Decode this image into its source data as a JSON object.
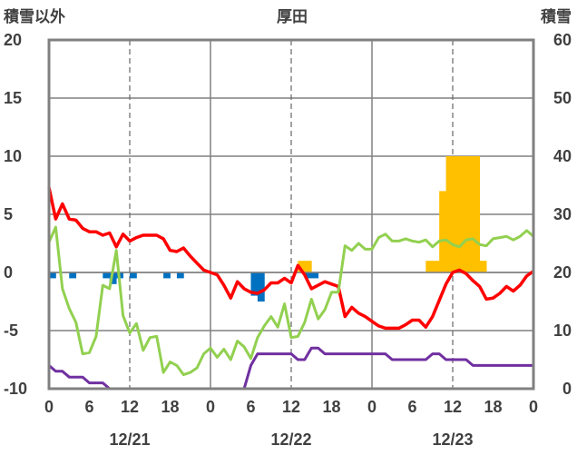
{
  "chart_data": {
    "type": "line+bar",
    "title": "厚田",
    "ylabel_left": "積雪以外",
    "ylabel_right": "積雪",
    "ylim_left": [
      -10,
      20
    ],
    "ylim_right": [
      0,
      60
    ],
    "yticks_left": [
      "20",
      "15",
      "10",
      "5",
      "0",
      "-5",
      "-10"
    ],
    "yticks_right": [
      "60",
      "50",
      "40",
      "30",
      "20",
      "10",
      "0"
    ],
    "xlim_hours": [
      0,
      72
    ],
    "xticks": [
      "0",
      "6",
      "12",
      "18",
      "0",
      "6",
      "12",
      "18",
      "0",
      "6",
      "12",
      "18",
      "0"
    ],
    "date_labels": [
      "12/21",
      "12/22",
      "12/23"
    ],
    "grid": true,
    "colors": {
      "temperature": "#ff0000",
      "green_series": "#92d050",
      "purple_series": "#7030a0",
      "precip_bar": "#0070c0",
      "snow_bar": "#ffc000",
      "frame": "#808080"
    },
    "series": [
      {
        "axis": "left",
        "color": "#ff0000",
        "x": [
          0,
          1,
          2,
          3,
          4,
          5,
          6,
          7,
          8,
          9,
          10,
          11,
          12,
          13,
          14,
          15,
          16,
          17,
          18,
          19,
          20,
          21,
          22,
          23,
          24,
          25,
          26,
          27,
          28,
          29,
          30,
          31,
          32,
          33,
          34,
          35,
          36,
          37,
          38,
          39,
          40,
          41,
          42,
          43,
          44,
          45,
          46,
          47,
          48,
          49,
          50,
          51,
          52,
          53,
          54,
          55,
          56,
          57,
          58,
          59,
          60,
          61,
          62,
          63,
          64,
          65,
          66,
          67,
          68,
          69,
          70,
          71,
          72
        ],
        "values": [
          7.3,
          4.6,
          5.9,
          4.6,
          4.5,
          3.8,
          3.5,
          3.5,
          3.2,
          3.4,
          2.2,
          3.3,
          2.7,
          3,
          3.2,
          3.2,
          3.2,
          2.9,
          1.9,
          1.8,
          2.1,
          1.4,
          0.8,
          0.2,
          0,
          -0.2,
          -1.1,
          -2.2,
          -0.8,
          -1.4,
          -1.7,
          -1.8,
          -1.5,
          -0.9,
          -0.9,
          -0.5,
          -0.9,
          0.6,
          -0.2,
          -1.4,
          -1.1,
          -0.8,
          -1,
          -1.2,
          -3.8,
          -3,
          -3.5,
          -3.8,
          -4.2,
          -4.6,
          -4.8,
          -4.8,
          -4.8,
          -4.5,
          -4.1,
          -4.1,
          -4.7,
          -3.8,
          -2.4,
          -1,
          0,
          0.2,
          -0.1,
          -0.7,
          -1.2,
          -2.3,
          -2.2,
          -1.8,
          -1.2,
          -1.6,
          -1.1,
          -0.3,
          0.1
        ]
      },
      {
        "axis": "left",
        "color": "#92d050",
        "x": [
          0,
          1,
          2,
          3,
          4,
          5,
          6,
          7,
          8,
          9,
          10,
          11,
          12,
          13,
          14,
          15,
          16,
          17,
          18,
          19,
          20,
          21,
          22,
          23,
          24,
          25,
          26,
          27,
          28,
          29,
          30,
          31,
          32,
          33,
          34,
          35,
          36,
          37,
          38,
          39,
          40,
          41,
          42,
          43,
          44,
          45,
          46,
          47,
          48,
          49,
          50,
          51,
          52,
          53,
          54,
          55,
          56,
          57,
          58,
          59,
          60,
          61,
          62,
          63,
          64,
          65,
          66,
          67,
          68,
          69,
          70,
          71,
          72
        ],
        "values": [
          2.6,
          3.9,
          -1.4,
          -3.1,
          -4.3,
          -7,
          -6.9,
          -5.5,
          -1.1,
          -1.4,
          1.9,
          -3.7,
          -5.2,
          -4.4,
          -6.7,
          -5.6,
          -5.5,
          -8.6,
          -7.7,
          -8,
          -8.8,
          -8.6,
          -8.2,
          -7,
          -6.5,
          -7.3,
          -6.6,
          -7.5,
          -5.9,
          -6.4,
          -7.4,
          -5.6,
          -4.6,
          -3.8,
          -4.7,
          -2.7,
          -5.6,
          -5.5,
          -4.3,
          -2.3,
          -4,
          -3.2,
          -1.7,
          -1.7,
          2.3,
          1.9,
          2.5,
          2,
          2,
          3,
          3.3,
          2.7,
          2.7,
          2.9,
          2.7,
          2.6,
          2.8,
          2.2,
          2.7,
          2.8,
          2.4,
          2.2,
          2.8,
          2.9,
          2.4,
          2.3,
          2.9,
          3,
          3.1,
          2.8,
          3.1,
          3.6,
          3.1
        ]
      },
      {
        "axis": "right",
        "color": "#7030a0",
        "x": [
          0,
          1,
          2,
          3,
          4,
          5,
          6,
          7,
          8,
          9,
          10,
          11,
          12,
          13,
          14,
          15,
          16,
          17,
          18,
          19,
          20,
          21,
          22,
          23,
          24,
          25,
          26,
          27,
          28,
          29,
          30,
          31,
          32,
          33,
          34,
          35,
          36,
          37,
          38,
          39,
          40,
          41,
          42,
          43,
          44,
          45,
          46,
          47,
          48,
          49,
          50,
          51,
          52,
          53,
          54,
          55,
          56,
          57,
          58,
          59,
          60,
          61,
          62,
          63,
          64,
          65,
          66,
          67,
          68,
          69,
          70,
          71,
          72
        ],
        "values": [
          4,
          3,
          3,
          2,
          2,
          2,
          1,
          1,
          1,
          0,
          0,
          0,
          0,
          0,
          0,
          0,
          0,
          0,
          0,
          0,
          0,
          0,
          0,
          0,
          0,
          0,
          0,
          0,
          0,
          0,
          4,
          6,
          6,
          6,
          6,
          6,
          6,
          5,
          5,
          7,
          7,
          6,
          6,
          6,
          6,
          6,
          6,
          6,
          6,
          6,
          6,
          5,
          5,
          5,
          5,
          5,
          5,
          6,
          6,
          5,
          5,
          5,
          5,
          4,
          4,
          4,
          4,
          4,
          4,
          4,
          4,
          4,
          4
        ]
      }
    ],
    "bars_precip": {
      "axis": "left",
      "color": "#0070c0",
      "x": [
        0.5,
        3.5,
        8.5,
        9.5,
        10.5,
        12.5,
        17.5,
        19.5,
        30.5,
        31.5,
        38.5,
        39.5
      ],
      "values": [
        -0.5,
        -0.5,
        -0.5,
        -1,
        -0.5,
        -0.5,
        -0.5,
        -0.5,
        -2,
        -2.5,
        -0.5,
        -0.5
      ]
    },
    "bars_snow": {
      "axis": "right",
      "color": "#ffc000",
      "x": [
        37.5,
        38.5,
        56.5,
        57.5,
        58.5,
        59.5,
        60.5,
        61.5,
        62.5,
        63.5,
        64.5
      ],
      "values": [
        22,
        22,
        22,
        22,
        34,
        40,
        40,
        40,
        40,
        40,
        22
      ]
    }
  }
}
